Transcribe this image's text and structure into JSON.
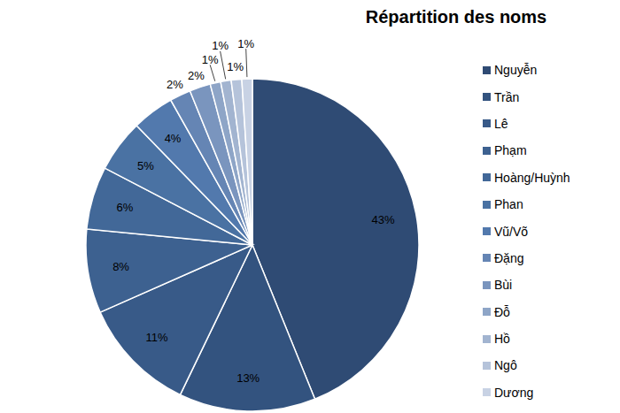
{
  "chart_data": {
    "type": "pie",
    "title": "Répartition des noms",
    "categories": [
      "Nguyễn",
      "Trần",
      "Lê",
      "Phạm",
      "Hoàng/Huỳnh",
      "Phan",
      "Vũ/Võ",
      "Đặng",
      "Bùi",
      "Đỗ",
      "Hồ",
      "Ngô",
      "Dương"
    ],
    "values": [
      43,
      13,
      11,
      8,
      6,
      5,
      4,
      2,
      2,
      1,
      1,
      1,
      1
    ],
    "value_labels": [
      "43%",
      "13%",
      "11%",
      "8%",
      "6%",
      "5%",
      "4%",
      "2%",
      "2%",
      "1%",
      "1%",
      "1%",
      "1%"
    ],
    "colors": [
      "#2f4b74",
      "#33537f",
      "#385a88",
      "#3d6190",
      "#426898",
      "#4a72a3",
      "#5279ad",
      "#6585b4",
      "#7a95be",
      "#8ea5c7",
      "#a2b4d0",
      "#b5c3da",
      "#c8d2e4"
    ],
    "data_labels": true,
    "legend": "right"
  }
}
